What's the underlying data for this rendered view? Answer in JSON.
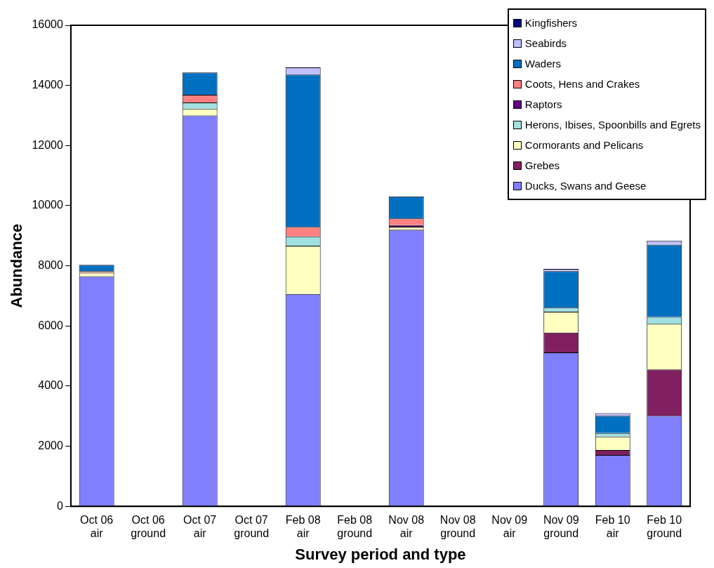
{
  "chart_data": {
    "type": "bar",
    "stacked": true,
    "xlabel": "Survey period and type",
    "ylabel": "Abundance",
    "categories": [
      "Oct 06 air",
      "Oct 06 ground",
      "Oct 07 air",
      "Oct 07 ground",
      "Feb 08 air",
      "Feb 08 ground",
      "Nov 08 air",
      "Nov 08 ground",
      "Nov 09 air",
      "Nov 09 ground",
      "Feb 10 air",
      "Feb 10 ground"
    ],
    "ylim": [
      0,
      16000
    ],
    "yticks": [
      0,
      2000,
      4000,
      6000,
      8000,
      10000,
      12000,
      14000,
      16000
    ],
    "grid": false,
    "legend": "top right",
    "series": [
      {
        "name": "Ducks, Swans and Geese",
        "color": "#8080ff",
        "values": [
          7650,
          0,
          13000,
          0,
          7060,
          0,
          9200,
          0,
          0,
          5120,
          1710,
          3010
        ]
      },
      {
        "name": "Grebes",
        "color": "#802060",
        "values": [
          0,
          0,
          0,
          0,
          0,
          0,
          0,
          0,
          0,
          660,
          160,
          1540
        ]
      },
      {
        "name": "Cormorants and Pelicans",
        "color": "#ffffc0",
        "values": [
          120,
          0,
          230,
          0,
          1610,
          0,
          100,
          0,
          0,
          690,
          450,
          1520
        ]
      },
      {
        "name": "Herons, Ibises, Spoonbills and Egrets",
        "color": "#a0e0e0",
        "values": [
          0,
          0,
          200,
          0,
          310,
          0,
          0,
          0,
          0,
          140,
          120,
          230
        ]
      },
      {
        "name": "Raptors",
        "color": "#600080",
        "values": [
          0,
          0,
          0,
          0,
          0,
          0,
          50,
          0,
          0,
          0,
          0,
          0
        ]
      },
      {
        "name": "Coots, Hens and Crakes",
        "color": "#ff8080",
        "values": [
          50,
          0,
          260,
          0,
          310,
          0,
          220,
          0,
          0,
          0,
          0,
          0
        ]
      },
      {
        "name": "Waders",
        "color": "#0070c0",
        "values": [
          210,
          0,
          740,
          0,
          5070,
          0,
          740,
          0,
          0,
          1210,
          570,
          2400
        ]
      },
      {
        "name": "Seabirds",
        "color": "#c0c0ff",
        "values": [
          0,
          0,
          0,
          0,
          240,
          0,
          0,
          0,
          0,
          80,
          90,
          140
        ]
      },
      {
        "name": "Kingfishers",
        "color": "#000080",
        "values": [
          0,
          0,
          0,
          0,
          0,
          0,
          0,
          0,
          0,
          0,
          0,
          0
        ]
      }
    ]
  }
}
